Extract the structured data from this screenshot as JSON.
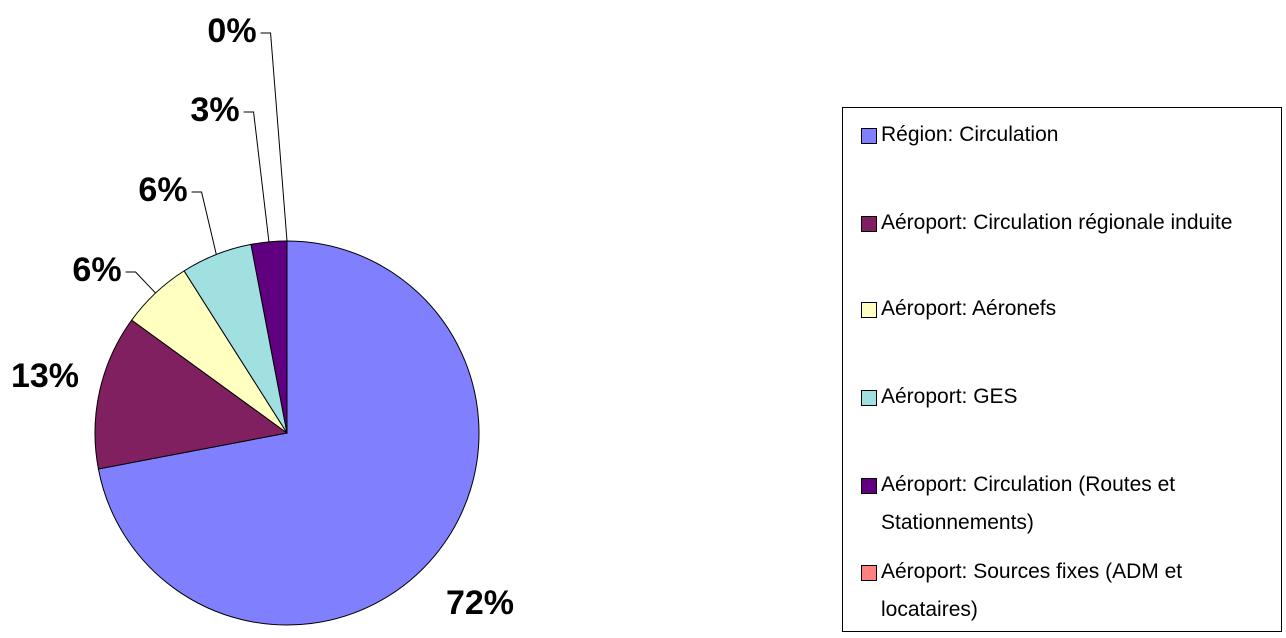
{
  "chart_data": {
    "type": "pie",
    "categories": [
      "Région: Circulation",
      "Aéroport: Circulation régionale induite",
      "Aéroport: Aéronefs",
      "Aéroport: GES",
      "Aéroport: Circulation (Routes et Stationnements)",
      "Aéroport: Sources fixes (ADM et locataires)"
    ],
    "values": [
      72,
      13,
      6,
      6,
      3,
      0
    ],
    "value_labels": [
      "72%",
      "13%",
      "6%",
      "6%",
      "3%",
      "0%"
    ],
    "colors": [
      "#8080ff",
      "#802060",
      "#ffffc0",
      "#a0e0e0",
      "#600080",
      "#ff8080"
    ]
  }
}
